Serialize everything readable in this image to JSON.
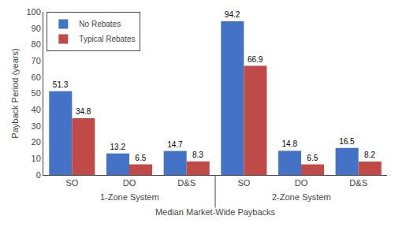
{
  "chart_data": {
    "type": "bar",
    "xlabel": "Median Market-Wide Paybacks",
    "ylabel": "Payback Period (years)",
    "categories": [
      "SO",
      "DO",
      "D&S",
      "SO",
      "DO",
      "D&S"
    ],
    "annotations": [
      "1-Zone System",
      "2-Zone System"
    ],
    "series": [
      {
        "name": "No Rebates",
        "color": "#4472C4",
        "values": [
          51.3,
          13.2,
          14.7,
          94.2,
          14.8,
          16.5
        ]
      },
      {
        "name": "Typical Rebates",
        "color": "#BE4B48",
        "values": [
          34.8,
          6.5,
          8.3,
          66.9,
          6.5,
          8.2
        ]
      }
    ],
    "ylim": [
      0,
      100
    ],
    "yticks": [
      0,
      10,
      20,
      30,
      40,
      50,
      60,
      70,
      80,
      90,
      100
    ],
    "grid": false,
    "legend": "upper left",
    "data_labels": true
  }
}
